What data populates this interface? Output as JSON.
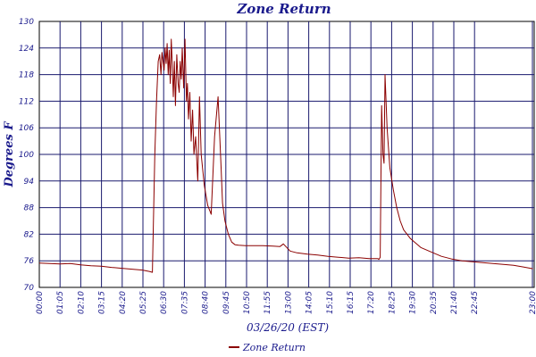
{
  "chart_data": {
    "type": "line",
    "title": "Zone Return",
    "xlabel": "03/26/20 (EST)",
    "ylabel": "Degrees F",
    "ylim": [
      70,
      130
    ],
    "xlim": [
      0,
      1440
    ],
    "y_ticks": [
      "70",
      "76",
      "82",
      "88",
      "94",
      "100",
      "106",
      "112",
      "118",
      "124",
      "130"
    ],
    "x_ticks": [
      "00:00",
      "01:05",
      "02:10",
      "03:15",
      "04:20",
      "05:25",
      "06:30",
      "07:35",
      "08:40",
      "09:45",
      "10:50",
      "11:55",
      "13:00",
      "14:05",
      "15:10",
      "16:15",
      "17:20",
      "18:25",
      "19:30",
      "20:35",
      "21:40",
      "22:45",
      "23:00"
    ],
    "grid": true,
    "legend_position": "bottom-center",
    "series": [
      {
        "name": "Zone Return",
        "color": "#8b0000",
        "x": [
          0,
          30,
          60,
          90,
          120,
          150,
          180,
          210,
          240,
          270,
          300,
          320,
          329,
          331,
          336,
          341,
          346,
          350,
          354,
          357,
          360,
          363,
          366,
          369,
          372,
          375,
          378,
          381,
          384,
          387,
          390,
          393,
          396,
          400,
          404,
          407,
          410,
          413,
          416,
          420,
          424,
          428,
          431,
          434,
          438,
          442,
          446,
          450,
          455,
          461,
          466,
          471,
          480,
          490,
          500,
          510,
          520,
          529,
          533,
          540,
          550,
          560,
          570,
          580,
          600,
          625,
          650,
          680,
          700,
          710,
          720,
          730,
          750,
          780,
          810,
          840,
          870,
          900,
          930,
          960,
          985,
          988,
          992,
          996,
          1000,
          1003,
          1006,
          1012,
          1020,
          1030,
          1040,
          1050,
          1060,
          1080,
          1110,
          1140,
          1170,
          1200,
          1230,
          1260,
          1290,
          1320,
          1350,
          1380,
          1410,
          1436
        ],
        "values": [
          75.5,
          75.4,
          75.3,
          75.4,
          75.1,
          74.9,
          74.8,
          74.5,
          74.3,
          74.1,
          73.9,
          73.6,
          73.4,
          80.5,
          100,
          112,
          121,
          122.5,
          118,
          123,
          121,
          119,
          124,
          120.5,
          125,
          118,
          123.5,
          116,
          126,
          120,
          113,
          121,
          111,
          122.5,
          116,
          114,
          121,
          117,
          124,
          115,
          126,
          112,
          116,
          108,
          114,
          103,
          110,
          100,
          104,
          94,
          113,
          100,
          93,
          88.5,
          86.5,
          104,
          113,
          97,
          89,
          85,
          82,
          80.2,
          79.6,
          79.5,
          79.4,
          79.4,
          79.4,
          79.3,
          79.2,
          79.8,
          79.0,
          78.2,
          77.8,
          77.5,
          77.3,
          77.0,
          76.8,
          76.6,
          76.7,
          76.5,
          76.5,
          76.3,
          76.8,
          111,
          100,
          98,
          118,
          106,
          97,
          92,
          88,
          85,
          83,
          81,
          79,
          78,
          77,
          76.4,
          76.0,
          75.8,
          75.6,
          75.4,
          75.2,
          75.0,
          74.6,
          74.2
        ]
      }
    ]
  }
}
